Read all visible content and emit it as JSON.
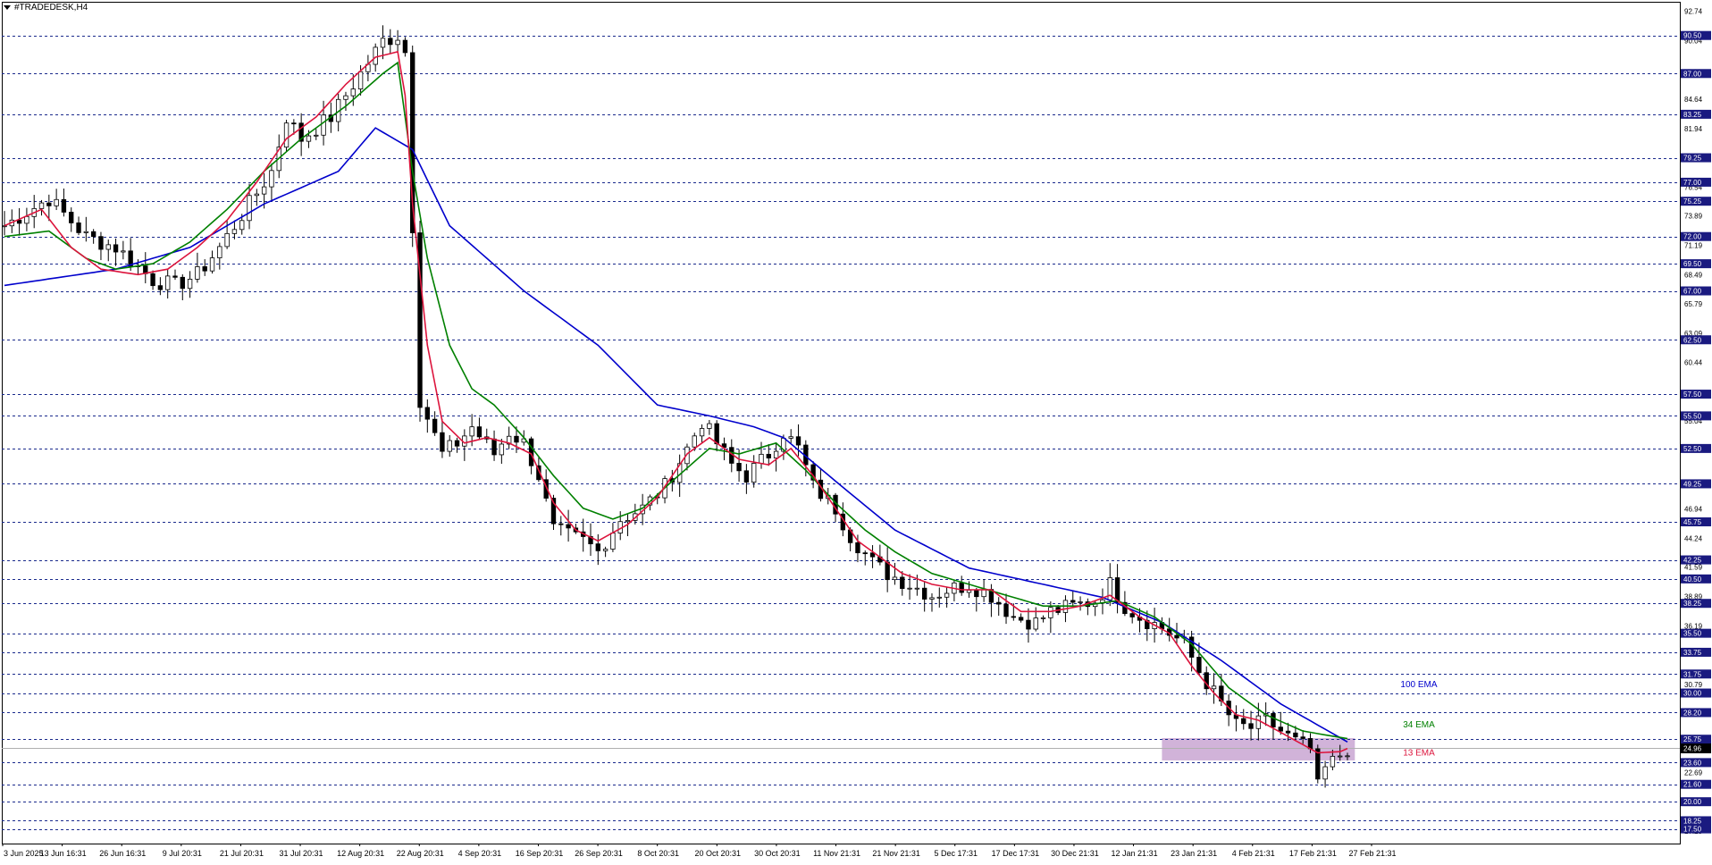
{
  "window": {
    "title": "#TRADEDESK,H4"
  },
  "chart_data": {
    "type": "candlestick",
    "symbol": "#TRADEDESK",
    "timeframe": "H4",
    "ylim": [
      16.15,
      93.6
    ],
    "current_price": 24.96,
    "price_ticks": [
      "92.74",
      "90.04",
      "84.64",
      "81.94",
      "76.54",
      "73.89",
      "71.19",
      "68.49",
      "65.79",
      "63.09",
      "60.44",
      "55.04",
      "46.94",
      "44.24",
      "41.59",
      "38.89",
      "36.19",
      "30.79",
      "22.69",
      "17.29"
    ],
    "horizontal_levels": [
      {
        "label": "90.50",
        "value": 90.5
      },
      {
        "label": "87.00",
        "value": 87.0
      },
      {
        "label": "83.25",
        "value": 83.25
      },
      {
        "label": "79.25",
        "value": 79.25
      },
      {
        "label": "77.00",
        "value": 77.0
      },
      {
        "label": "75.25",
        "value": 75.25
      },
      {
        "label": "72.00",
        "value": 72.0
      },
      {
        "label": "69.50",
        "value": 69.5
      },
      {
        "label": "67.00",
        "value": 67.0
      },
      {
        "label": "62.50",
        "value": 62.5
      },
      {
        "label": "57.50",
        "value": 57.5
      },
      {
        "label": "55.50",
        "value": 55.5
      },
      {
        "label": "52.50",
        "value": 52.5
      },
      {
        "label": "49.25",
        "value": 49.25
      },
      {
        "label": "45.75",
        "value": 45.75
      },
      {
        "label": "42.25",
        "value": 42.25
      },
      {
        "label": "40.50",
        "value": 40.5
      },
      {
        "label": "38.25",
        "value": 38.25
      },
      {
        "label": "35.50",
        "value": 35.5
      },
      {
        "label": "33.75",
        "value": 33.75
      },
      {
        "label": "31.75",
        "value": 31.75
      },
      {
        "label": "30.00",
        "value": 30.0
      },
      {
        "label": "28.20",
        "value": 28.2
      },
      {
        "label": "25.75",
        "value": 25.75
      },
      {
        "label": "23.60",
        "value": 23.6
      },
      {
        "label": "21.60",
        "value": 21.6
      },
      {
        "label": "20.00",
        "value": 20.0
      },
      {
        "label": "18.25",
        "value": 18.25
      },
      {
        "label": "17.50",
        "value": 17.5
      }
    ],
    "time_labels": [
      "3 Jun 2025",
      "13 Jun 16:31",
      "26 Jun 16:31",
      "9 Jul 20:31",
      "21 Jul 20:31",
      "31 Jul 20:31",
      "12 Aug 20:31",
      "22 Aug 20:31",
      "4 Sep 20:31",
      "16 Sep 20:31",
      "26 Sep 20:31",
      "8 Oct 20:31",
      "20 Oct 20:31",
      "30 Oct 20:31",
      "11 Nov 21:31",
      "21 Nov 21:31",
      "5 Dec 17:31",
      "17 Dec 17:31",
      "30 Dec 21:31",
      "12 Jan 21:31",
      "23 Jan 21:31",
      "4 Feb 21:31",
      "17 Feb 21:31",
      "27 Feb 21:31"
    ],
    "price_path": [
      [
        0,
        73
      ],
      [
        6,
        75.5
      ],
      [
        11,
        72
      ],
      [
        15,
        71
      ],
      [
        20,
        68
      ],
      [
        23,
        67.5
      ],
      [
        26,
        68.5
      ],
      [
        29,
        71
      ],
      [
        32,
        74
      ],
      [
        36,
        78
      ],
      [
        38,
        83
      ],
      [
        40,
        81
      ],
      [
        44,
        83
      ],
      [
        48,
        87
      ],
      [
        51,
        90
      ],
      [
        53,
        90.5
      ],
      [
        54,
        89
      ],
      [
        56,
        57
      ],
      [
        59,
        52
      ],
      [
        61,
        53
      ],
      [
        63,
        54.5
      ],
      [
        66,
        52
      ],
      [
        68,
        54
      ],
      [
        70,
        53
      ],
      [
        72,
        50
      ],
      [
        74,
        45
      ],
      [
        78,
        44
      ],
      [
        80,
        43
      ],
      [
        83,
        46
      ],
      [
        86,
        47
      ],
      [
        89,
        49
      ],
      [
        92,
        52.5
      ],
      [
        94,
        55
      ],
      [
        96,
        53
      ],
      [
        98,
        51
      ],
      [
        100,
        50
      ],
      [
        103,
        52
      ],
      [
        105,
        54
      ],
      [
        107,
        52.5
      ],
      [
        109,
        49
      ],
      [
        112,
        47
      ],
      [
        114,
        44.5
      ],
      [
        117,
        42
      ],
      [
        119,
        41
      ],
      [
        122,
        40
      ],
      [
        125,
        39
      ],
      [
        127,
        39.5
      ],
      [
        130,
        40
      ],
      [
        133,
        39
      ],
      [
        136,
        37
      ],
      [
        139,
        36.5
      ],
      [
        141,
        37.5
      ],
      [
        144,
        38
      ],
      [
        147,
        38.5
      ],
      [
        149,
        40
      ],
      [
        151,
        38
      ],
      [
        153,
        37
      ],
      [
        156,
        36
      ],
      [
        159,
        34.5
      ],
      [
        161,
        32
      ],
      [
        164,
        29
      ],
      [
        166,
        27
      ],
      [
        168,
        26.8
      ],
      [
        170,
        27.5
      ],
      [
        172,
        26.5
      ],
      [
        174,
        25.5
      ],
      [
        176,
        24.8
      ],
      [
        177,
        21.3
      ],
      [
        178,
        23
      ],
      [
        180,
        24.3
      ],
      [
        181,
        24.9
      ]
    ],
    "series": [
      {
        "name": "100 EMA",
        "color": "#0000cc",
        "points": [
          [
            0,
            67.5
          ],
          [
            15,
            69
          ],
          [
            25,
            71
          ],
          [
            35,
            75
          ],
          [
            45,
            78
          ],
          [
            50,
            82
          ],
          [
            55,
            80
          ],
          [
            60,
            73
          ],
          [
            70,
            67
          ],
          [
            80,
            62
          ],
          [
            88,
            56.5
          ],
          [
            95,
            55.5
          ],
          [
            101,
            54.5
          ],
          [
            105,
            53.5
          ],
          [
            112,
            49.5
          ],
          [
            120,
            45
          ],
          [
            130,
            41.5
          ],
          [
            140,
            40
          ],
          [
            148,
            38.8
          ],
          [
            156,
            36.5
          ],
          [
            164,
            33
          ],
          [
            172,
            29
          ],
          [
            181,
            25.5
          ]
        ]
      },
      {
        "name": "34 EMA",
        "color": "#008000",
        "points": [
          [
            0,
            72
          ],
          [
            6,
            72.5
          ],
          [
            11,
            70
          ],
          [
            15,
            69
          ],
          [
            20,
            69.5
          ],
          [
            25,
            71.5
          ],
          [
            30,
            74.5
          ],
          [
            35,
            78
          ],
          [
            40,
            81
          ],
          [
            46,
            84
          ],
          [
            51,
            87
          ],
          [
            53,
            88
          ],
          [
            55,
            78
          ],
          [
            57,
            70
          ],
          [
            60,
            62
          ],
          [
            63,
            58
          ],
          [
            66,
            56.5
          ],
          [
            70,
            53.5
          ],
          [
            74,
            50
          ],
          [
            78,
            47
          ],
          [
            82,
            46
          ],
          [
            86,
            47
          ],
          [
            90,
            49.5
          ],
          [
            95,
            52.5
          ],
          [
            99,
            52
          ],
          [
            104,
            53
          ],
          [
            108,
            50.5
          ],
          [
            112,
            47.5
          ],
          [
            116,
            45
          ],
          [
            120,
            43
          ],
          [
            125,
            41
          ],
          [
            130,
            40
          ],
          [
            135,
            39
          ],
          [
            140,
            38
          ],
          [
            145,
            38
          ],
          [
            150,
            38.5
          ],
          [
            155,
            37
          ],
          [
            160,
            34.5
          ],
          [
            165,
            30.5
          ],
          [
            170,
            28
          ],
          [
            175,
            26.5
          ],
          [
            181,
            25.8
          ]
        ]
      },
      {
        "name": "13 EMA",
        "color": "#dc143c",
        "points": [
          [
            0,
            73
          ],
          [
            5,
            74.5
          ],
          [
            9,
            71
          ],
          [
            13,
            69
          ],
          [
            18,
            68.5
          ],
          [
            22,
            69
          ],
          [
            26,
            71
          ],
          [
            30,
            73.5
          ],
          [
            34,
            77
          ],
          [
            38,
            81
          ],
          [
            42,
            83
          ],
          [
            46,
            86
          ],
          [
            50,
            88.5
          ],
          [
            53,
            89
          ],
          [
            54,
            85
          ],
          [
            55,
            75
          ],
          [
            57,
            62
          ],
          [
            59,
            55
          ],
          [
            62,
            53
          ],
          [
            65,
            53.5
          ],
          [
            68,
            53
          ],
          [
            71,
            52
          ],
          [
            74,
            47.5
          ],
          [
            77,
            45
          ],
          [
            80,
            44
          ],
          [
            84,
            45.5
          ],
          [
            88,
            48
          ],
          [
            92,
            52
          ],
          [
            95,
            53.5
          ],
          [
            99,
            51.5
          ],
          [
            103,
            51
          ],
          [
            106,
            52.5
          ],
          [
            109,
            50
          ],
          [
            112,
            47
          ],
          [
            115,
            44
          ],
          [
            118,
            42.5
          ],
          [
            121,
            41
          ],
          [
            125,
            40
          ],
          [
            129,
            39.5
          ],
          [
            133,
            39.5
          ],
          [
            137,
            37.5
          ],
          [
            141,
            37.5
          ],
          [
            145,
            38
          ],
          [
            149,
            39
          ],
          [
            153,
            37
          ],
          [
            157,
            35.5
          ],
          [
            160,
            32.5
          ],
          [
            163,
            30
          ],
          [
            166,
            28
          ],
          [
            169,
            27.5
          ],
          [
            173,
            26
          ],
          [
            177,
            24.5
          ],
          [
            180,
            24.6
          ],
          [
            181,
            24.9
          ]
        ]
      }
    ],
    "annotations": [
      {
        "text": "100 EMA",
        "color": "#0000cc"
      },
      {
        "text": "34 EMA",
        "color": "#008000"
      },
      {
        "text": "13 EMA",
        "color": "#dc143c"
      }
    ],
    "support_zone": {
      "from_value": 23.8,
      "to_value": 25.85,
      "x_from": 156,
      "x_to": 182,
      "color": "#c9a6d2"
    },
    "colors": {
      "background": "#ffffff",
      "grid_level": "#1a2a8c",
      "candle": "#000000",
      "axis_label_bg": "#1a1a80",
      "current_price_bg": "#000000"
    }
  }
}
